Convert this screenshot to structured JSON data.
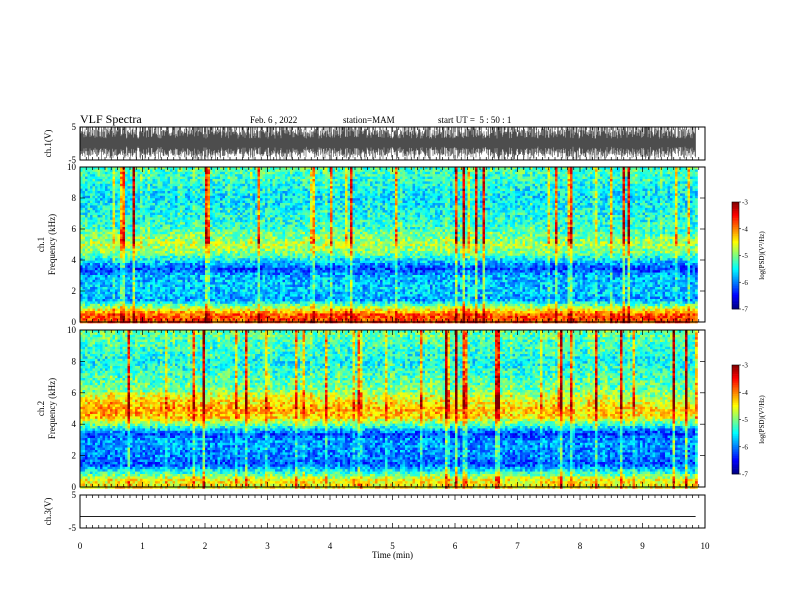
{
  "header": {
    "title": "VLF Spectra",
    "date": "Feb. 6 , 2022",
    "station": "station=MAM",
    "start": "start UT =  5 : 50 : 1"
  },
  "colors": {
    "colormap": [
      "#00007f",
      "#0000ff",
      "#007fff",
      "#00ffff",
      "#7fff7f",
      "#ffff00",
      "#ff7f00",
      "#ff0000",
      "#7f0000",
      "#ffffff"
    ]
  },
  "chart_data": [
    {
      "type": "line",
      "ylabel": "ch.1(V)",
      "ylim": [
        -5,
        5
      ],
      "yticks": [
        "5",
        "-5"
      ],
      "description_series": "dense burst waveform, amplitude near ±5 V"
    },
    {
      "type": "heatmap",
      "ylabel_channel": "ch.1",
      "ylabel": "Frequency (kHz)",
      "ylim": [
        0,
        10
      ],
      "yticks": [
        "0",
        "2",
        "4",
        "6",
        "8",
        "10"
      ],
      "colorbar": {
        "label": "log(PSD)(V²/Hz)",
        "range": [
          -7,
          -3
        ],
        "ticks": [
          "-3",
          "-4",
          "-5",
          "-6",
          "-7"
        ]
      },
      "band_profile_khz": [
        0.5,
        1.5,
        2.0,
        3.0,
        3.5,
        4.5,
        5.0,
        6.0,
        8.0,
        10.0
      ],
      "band_level_log": [
        -3.8,
        -5.9,
        -5.7,
        -5.8,
        -6.3,
        -5.1,
        -4.9,
        -5.3,
        -5.6,
        -5.2
      ]
    },
    {
      "type": "heatmap",
      "ylabel_channel": "ch.2",
      "ylabel": "Frequency (kHz)",
      "ylim": [
        0,
        10
      ],
      "yticks": [
        "0",
        "2",
        "4",
        "6",
        "8",
        "10"
      ],
      "colorbar": {
        "label": "log(PSD)(V²/Hz)",
        "range": [
          -7,
          -3
        ],
        "ticks": [
          "-3",
          "-4",
          "-5",
          "-6",
          "-7"
        ]
      },
      "band_profile_khz": [
        0.5,
        1.5,
        2.0,
        3.0,
        3.5,
        4.5,
        5.0,
        6.0,
        8.0,
        10.0
      ],
      "band_level_log": [
        -4.5,
        -6.2,
        -6.0,
        -5.9,
        -6.3,
        -4.5,
        -4.4,
        -5.0,
        -5.5,
        -5.1
      ]
    },
    {
      "type": "line",
      "ylabel": "ch.3(V)",
      "ylim": [
        -5,
        5
      ],
      "yticks": [
        "5",
        "-5"
      ],
      "constant_value": -1.5
    }
  ],
  "xaxis": {
    "label": "Time (min)",
    "xlim": [
      0,
      10
    ],
    "ticks": [
      "0",
      "1",
      "2",
      "3",
      "4",
      "5",
      "6",
      "7",
      "8",
      "9",
      "10"
    ],
    "data_end": 9.85
  }
}
